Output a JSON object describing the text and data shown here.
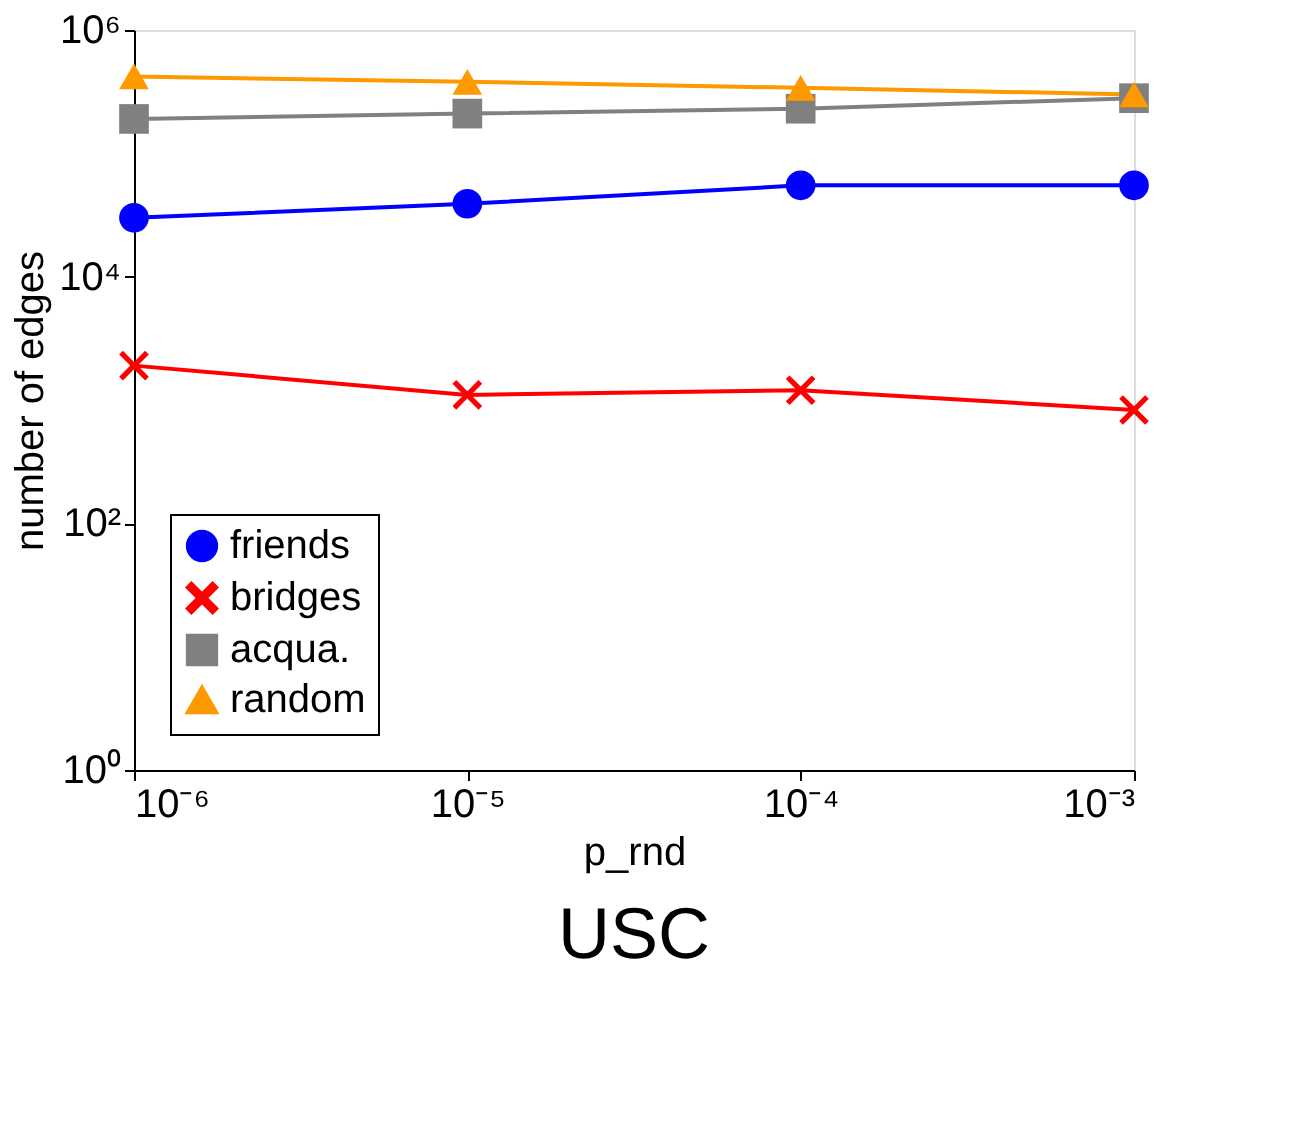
{
  "chart_data": {
    "type": "line",
    "title": "USC",
    "xlabel": "p_rnd",
    "ylabel": "number of edges",
    "x": [
      1e-06,
      1e-05,
      0.0001,
      0.001
    ],
    "series": [
      {
        "name": "friends",
        "color": "#0000ff",
        "marker": "circle",
        "values": [
          30000,
          39000,
          55000,
          55000
        ]
      },
      {
        "name": "bridges",
        "color": "#ff0000",
        "marker": "cross",
        "values": [
          1900,
          1100,
          1200,
          830
        ]
      },
      {
        "name": "acqua.",
        "color": "#808080",
        "marker": "square",
        "values": [
          190000,
          210000,
          230000,
          280000
        ]
      },
      {
        "name": "random",
        "color": "#ff9900",
        "marker": "triangle",
        "values": [
          420000,
          380000,
          340000,
          300000
        ]
      }
    ],
    "log": "xy",
    "xlim": [
      1e-06,
      0.001
    ],
    "ylim": [
      1,
      1000000
    ],
    "xticks": [
      {
        "value": 1e-06,
        "label": "10⁻⁶"
      },
      {
        "value": 1e-05,
        "label": "10⁻⁵"
      },
      {
        "value": 0.0001,
        "label": "10⁻⁴"
      },
      {
        "value": 0.001,
        "label": "10⁻³"
      }
    ],
    "yticks": [
      {
        "value": 1,
        "label": "10⁰"
      },
      {
        "value": 100,
        "label": "10²"
      },
      {
        "value": 10000,
        "label": "10⁴"
      },
      {
        "value": 1000000,
        "label": "10⁶"
      }
    ],
    "grid": false,
    "legend": "bottom left",
    "line_style": "solid"
  }
}
